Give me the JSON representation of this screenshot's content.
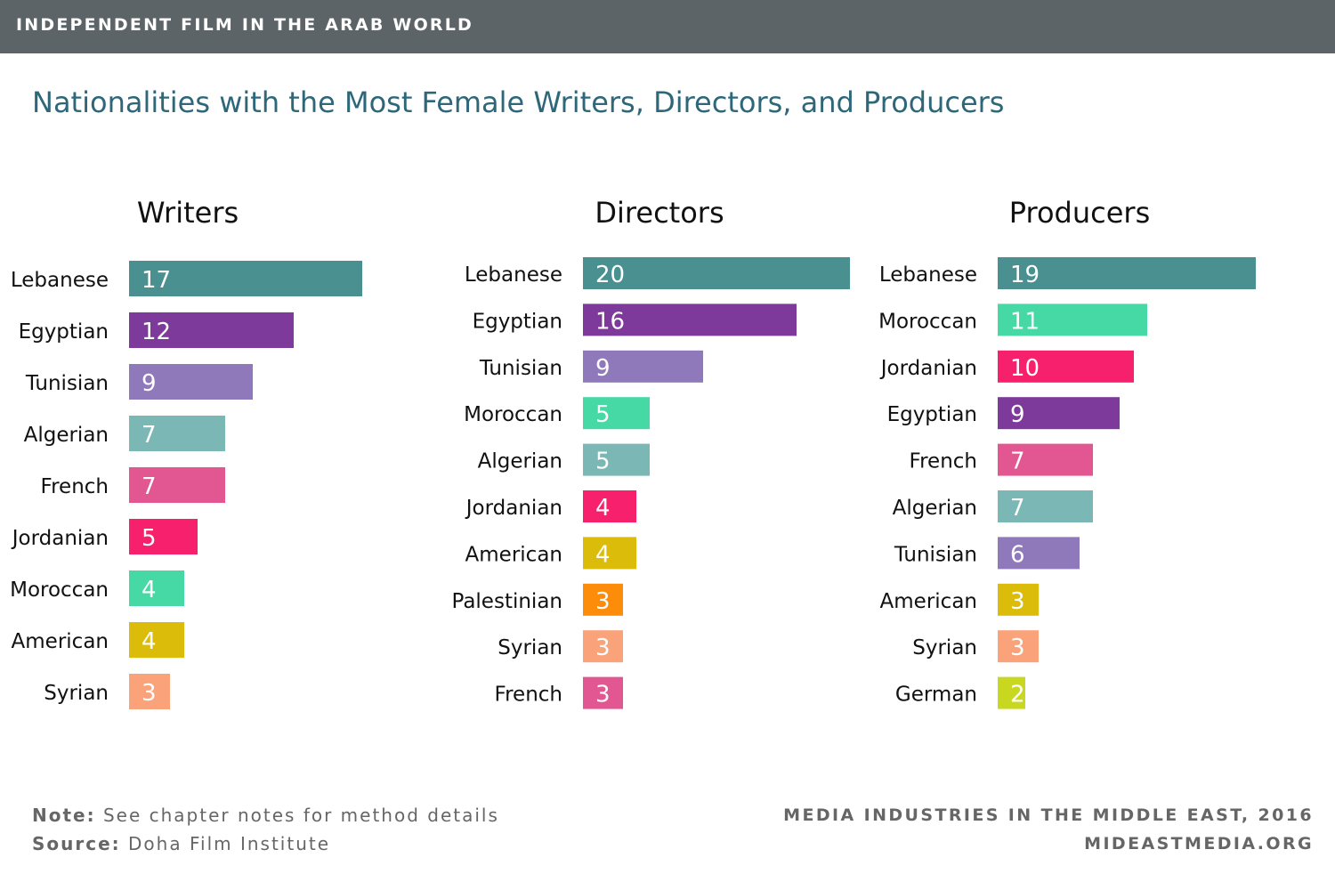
{
  "header": {
    "banner": "INDEPENDENT FILM IN THE ARAB WORLD",
    "subtitle": "Nationalities with the Most Female Writers, Directors, and Producers"
  },
  "footer": {
    "note_label": "Note:",
    "note_text": "See chapter notes for method details",
    "source_label": "Source:",
    "source_text": "Doha Film Institute",
    "credit_line1": "MEDIA INDUSTRIES IN THE MIDDLE EAST, 2016",
    "credit_line2": "MIDEASTMEDIA.ORG"
  },
  "colors": {
    "Lebanese": "#4a9090",
    "Egyptian": "#7e3a9a",
    "Tunisian": "#9079bb",
    "Algerian": "#7bb8b5",
    "French": "#e25791",
    "Jordanian": "#f7206c",
    "Moroccan": "#46d9a6",
    "American": "#dcbc0a",
    "Syrian": "#faa37a",
    "Palestinian": "#fc8c0a",
    "German": "#c8d820"
  },
  "chart_data": [
    {
      "type": "bar",
      "orientation": "horizontal",
      "title": "Writers",
      "categories": [
        "Lebanese",
        "Egyptian",
        "Tunisian",
        "Algerian",
        "French",
        "Jordanian",
        "Moroccan",
        "American",
        "Syrian"
      ],
      "values": [
        17,
        12,
        9,
        7,
        7,
        5,
        4,
        4,
        3
      ]
    },
    {
      "type": "bar",
      "orientation": "horizontal",
      "title": "Directors",
      "categories": [
        "Lebanese",
        "Egyptian",
        "Tunisian",
        "Moroccan",
        "Algerian",
        "Jordanian",
        "American",
        "Palestinian",
        "Syrian",
        "French"
      ],
      "values": [
        20,
        16,
        9,
        5,
        5,
        4,
        4,
        3,
        3,
        3
      ]
    },
    {
      "type": "bar",
      "orientation": "horizontal",
      "title": "Producers",
      "categories": [
        "Lebanese",
        "Moroccan",
        "Jordanian",
        "Egyptian",
        "French",
        "Algerian",
        "Tunisian",
        "American",
        "Syrian",
        "German"
      ],
      "values": [
        19,
        11,
        10,
        9,
        7,
        7,
        6,
        3,
        3,
        2
      ]
    }
  ]
}
